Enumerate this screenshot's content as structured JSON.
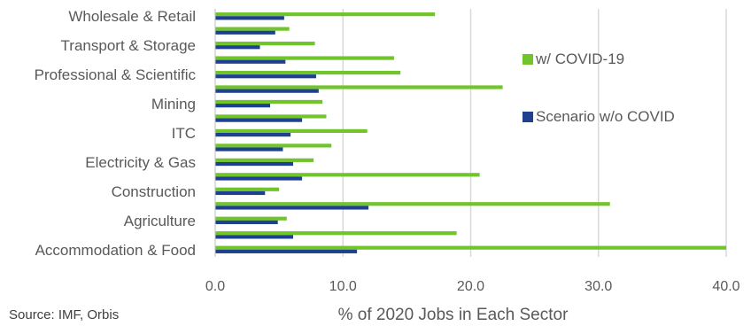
{
  "chart_data": {
    "type": "bar",
    "orientation": "horizontal",
    "categories": [
      "Wholesale & Retail",
      "",
      "Transport & Storage",
      "",
      "Professional & Scientific",
      "",
      "Mining",
      "",
      "ITC",
      "",
      "Electricity & Gas",
      "",
      "Construction",
      "",
      "Agriculture",
      "",
      "Accommodation & Food"
    ],
    "series": [
      {
        "name": "w/ COVID-19",
        "color": "#70c42c",
        "values": [
          17.2,
          5.8,
          7.8,
          14.0,
          14.5,
          22.5,
          8.4,
          8.7,
          11.9,
          9.1,
          7.7,
          20.7,
          5.0,
          30.9,
          5.6,
          18.9,
          40.0
        ]
      },
      {
        "name": "Scenario w/o COVID",
        "color": "#1f3f8f",
        "values": [
          5.4,
          4.7,
          3.5,
          5.5,
          7.9,
          8.1,
          4.3,
          6.8,
          5.9,
          5.3,
          6.1,
          6.8,
          3.9,
          12.0,
          4.9,
          6.1,
          11.1
        ]
      }
    ],
    "xlabel": "% of 2020 Jobs in Each Sector",
    "ylabel": "",
    "xlim": [
      0,
      40
    ],
    "xticks": [
      "0.0",
      "10.0",
      "20.0",
      "30.0",
      "40.0"
    ],
    "grid": true,
    "legend_position": "right"
  },
  "source_text": "Source: IMF, Orbis"
}
